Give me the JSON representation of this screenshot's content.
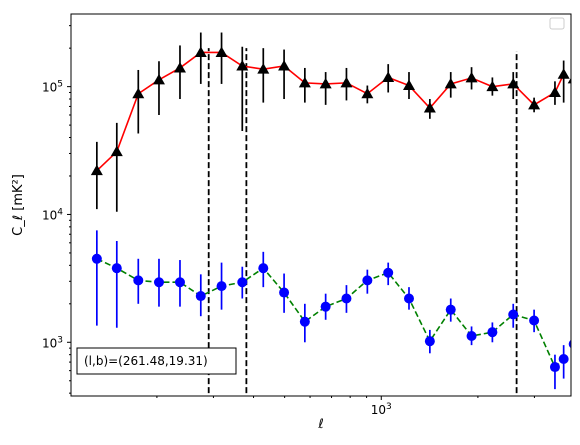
{
  "chart_data": {
    "type": "line",
    "title": "",
    "xlabel": "ℓ",
    "ylabel": "C_ℓ  [mK²]",
    "xscale": "log",
    "yscale": "log",
    "xlim": [
      108,
      3900
    ],
    "ylim": [
      380,
      370000
    ],
    "x_tick_labels": [
      {
        "value": 1000,
        "base": "10",
        "exp": "3"
      }
    ],
    "y_tick_labels": [
      {
        "value": 1000,
        "base": "10",
        "exp": "3"
      },
      {
        "value": 10000,
        "base": "10",
        "exp": "4"
      },
      {
        "value": 100000,
        "base": "10",
        "exp": "5"
      }
    ],
    "annotation": "(l,b)=(261.48,19.31)",
    "legend": "empty box, top-right",
    "grid": false,
    "vlines": [
      {
        "x": 290,
        "ymin": 400,
        "ymax": 200000
      },
      {
        "x": 380,
        "ymin": 400,
        "ymax": 200000
      },
      {
        "x": 2640,
        "ymin": 400,
        "ymax": 190000
      }
    ],
    "series": [
      {
        "marker": "triangle",
        "color": "#000000",
        "line_color": "#ff0000",
        "line_style": "solid",
        "err_color": "#000000",
        "x": [
          130,
          150,
          175,
          203,
          236,
          274,
          318,
          369,
          429,
          498,
          578,
          671,
          779,
          905,
          1051,
          1220,
          1417,
          1646,
          1911,
          2219,
          2577,
          2993,
          3476,
          3700
        ],
        "y": [
          22000,
          31000,
          88000,
          113000,
          140000,
          185000,
          185000,
          145000,
          137000,
          145000,
          107000,
          105000,
          107000,
          88000,
          118000,
          102000,
          68000,
          105000,
          117000,
          100000,
          105000,
          72000,
          90000,
          125000
        ],
        "err_low": [
          11000,
          10500,
          43000,
          60000,
          80000,
          105000,
          105000,
          45000,
          75000,
          80000,
          75000,
          72000,
          78000,
          74000,
          90000,
          80000,
          56000,
          82000,
          95000,
          85000,
          80000,
          63000,
          72000,
          75000
        ],
        "err_high": [
          37000,
          52000,
          135000,
          158000,
          210000,
          265000,
          265000,
          205000,
          200000,
          195000,
          140000,
          130000,
          140000,
          102000,
          150000,
          130000,
          80000,
          130000,
          142000,
          118000,
          130000,
          82000,
          110000,
          160000
        ]
      },
      {
        "marker": "circle",
        "color": "#0000ff",
        "line_color": "#008000",
        "line_style": "dashed",
        "err_color": "#0000ff",
        "x": [
          130,
          150,
          175,
          203,
          236,
          274,
          318,
          369,
          429,
          498,
          578,
          671,
          779,
          905,
          1051,
          1220,
          1417,
          1646,
          1911,
          2219,
          2577,
          2993,
          3476,
          3700
        ],
        "y": [
          4500,
          3800,
          3050,
          2950,
          2950,
          2300,
          2750,
          2950,
          3800,
          2450,
          1450,
          1900,
          2200,
          3050,
          3500,
          2200,
          1020,
          1800,
          1120,
          1200,
          1650,
          1480,
          640,
          740
        ],
        "err_low": [
          1350,
          1300,
          2000,
          1900,
          1900,
          1600,
          1800,
          2200,
          2700,
          1700,
          1000,
          1500,
          1700,
          2400,
          2800,
          1800,
          820,
          1450,
          950,
          1000,
          1300,
          1200,
          430,
          520
        ],
        "err_high": [
          7500,
          6200,
          4500,
          4500,
          4400,
          3400,
          4200,
          3900,
          5100,
          3450,
          2000,
          2400,
          2800,
          3700,
          4200,
          2700,
          1250,
          2200,
          1330,
          1430,
          2000,
          1800,
          800,
          950
        ]
      },
      {
        "marker": "circle",
        "color": "#0000ff",
        "line_color": "#008000",
        "line_style": "none",
        "err_color": "#0000ff",
        "x": [
          3976
        ],
        "y": [
          970
        ],
        "err_low": [
          620
        ],
        "err_high": [
          1350
        ]
      },
      {
        "marker": "triangle",
        "color": "#000000",
        "line_color": "#ff0000",
        "line_style": "none",
        "err_color": "#000000",
        "x": [
          3976
        ],
        "y": [
          115000
        ],
        "err_low": [
          75000
        ],
        "err_high": [
          160000
        ]
      }
    ]
  }
}
